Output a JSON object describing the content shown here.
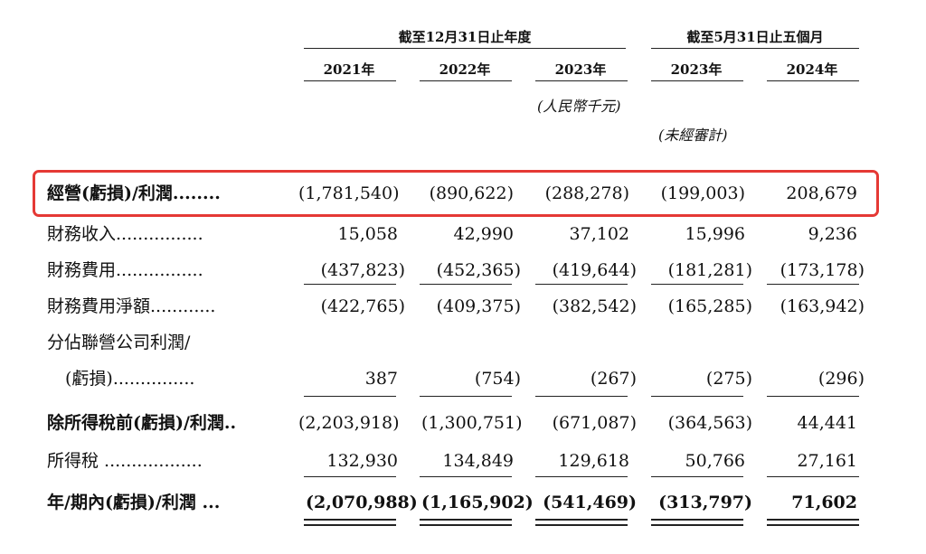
{
  "header": {
    "group_year": "截至12月31日止年度",
    "group_five_month": "截至5月31日止五個月",
    "years": [
      "2021年",
      "2022年",
      "2023年",
      "2023年",
      "2024年"
    ],
    "currency_note": "(人民幣千元)",
    "unaudited_note": "(未經審計)"
  },
  "rows": [
    {
      "label": "經營(虧損)/利潤........",
      "values": [
        "(1,781,540)",
        "(890,622)",
        "(288,278)",
        "(199,003)",
        "208,679"
      ]
    },
    {
      "label": "財務收入................",
      "values": [
        "15,058",
        "42,990",
        "37,102",
        "15,996",
        "9,236"
      ]
    },
    {
      "label": "財務費用................",
      "values": [
        "(437,823)",
        "(452,365)",
        "(419,644)",
        "(181,281)",
        "(173,178)"
      ]
    },
    {
      "label": "財務費用淨額............",
      "values": [
        "(422,765)",
        "(409,375)",
        "(382,542)",
        "(165,285)",
        "(163,942)"
      ]
    },
    {
      "label": "分佔聯營公司利潤/",
      "label2": "(虧損)...............",
      "values": [
        "387",
        "(754)",
        "(267)",
        "(275)",
        "(296)"
      ]
    },
    {
      "label": "除所得稅前(虧損)/利潤..",
      "values": [
        "(2,203,918)",
        "(1,300,751)",
        "(671,087)",
        "(364,563)",
        "44,441"
      ]
    },
    {
      "label": "所得稅 ..................",
      "values": [
        "132,930",
        "134,849",
        "129,618",
        "50,766",
        "27,161"
      ]
    },
    {
      "label": "年/期內(虧損)/利潤 ...",
      "values": [
        "(2,070,988)",
        "(1,165,902)",
        "(541,469)",
        "(313,797)",
        "71,602"
      ]
    }
  ]
}
